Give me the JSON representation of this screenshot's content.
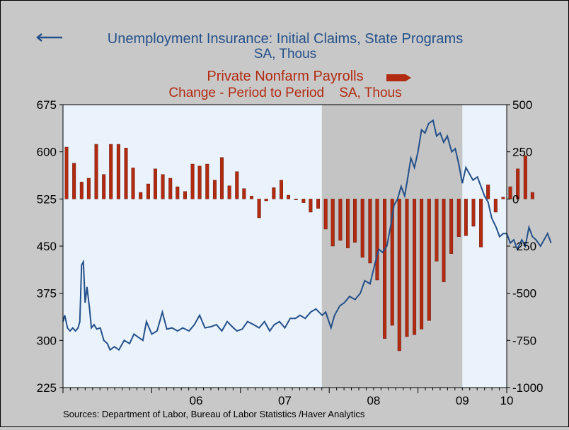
{
  "chart_data": {
    "type": "bar+line",
    "title_line1": "Unemployment Insurance: Initial Claims, State Programs",
    "title_line1_sub": "SA, Thous",
    "title_line2": "Private Nonfarm Payrolls",
    "title_line2_sub": "Change - Period to Period    SA, Thous",
    "source": "Sources:  Department of Labor, Bureau of Labor Statistics /Haver Analytics",
    "colors": {
      "claims": "#24508a",
      "payrolls": "#b22a10",
      "recession": "#c4c4c4",
      "plot_bg": "#eaf3fc"
    },
    "left_axis": {
      "min": 225,
      "max": 675,
      "ticks": [
        225,
        300,
        375,
        450,
        525,
        600,
        675
      ]
    },
    "right_axis": {
      "min": -1000,
      "max": 500,
      "ticks": [
        -1000,
        -750,
        -500,
        -250,
        0,
        250,
        500
      ]
    },
    "x_axis": {
      "min": 2005.0,
      "max": 2010.0,
      "labels": [
        {
          "label": "06",
          "x": 2006.5
        },
        {
          "label": "07",
          "x": 2007.5
        },
        {
          "label": "08",
          "x": 2008.5
        },
        {
          "label": "09",
          "x": 2009.5
        },
        {
          "label": "10",
          "x": 2010.0
        }
      ]
    },
    "recession": [
      2007.917,
      2009.5
    ],
    "payrolls": [
      {
        "x": 2005.04,
        "y": 275
      },
      {
        "x": 2005.125,
        "y": 190
      },
      {
        "x": 2005.21,
        "y": 90
      },
      {
        "x": 2005.29,
        "y": 110
      },
      {
        "x": 2005.375,
        "y": 290
      },
      {
        "x": 2005.46,
        "y": 130
      },
      {
        "x": 2005.54,
        "y": 290
      },
      {
        "x": 2005.625,
        "y": 290
      },
      {
        "x": 2005.71,
        "y": 270
      },
      {
        "x": 2005.79,
        "y": 165
      },
      {
        "x": 2005.875,
        "y": 35
      },
      {
        "x": 2005.96,
        "y": 80
      },
      {
        "x": 2006.04,
        "y": 160
      },
      {
        "x": 2006.125,
        "y": 130
      },
      {
        "x": 2006.21,
        "y": 110
      },
      {
        "x": 2006.29,
        "y": 65
      },
      {
        "x": 2006.375,
        "y": 40
      },
      {
        "x": 2006.46,
        "y": 185
      },
      {
        "x": 2006.54,
        "y": 175
      },
      {
        "x": 2006.625,
        "y": 185
      },
      {
        "x": 2006.71,
        "y": 100
      },
      {
        "x": 2006.79,
        "y": 220
      },
      {
        "x": 2006.875,
        "y": 70
      },
      {
        "x": 2006.96,
        "y": 145
      },
      {
        "x": 2007.04,
        "y": 55
      },
      {
        "x": 2007.125,
        "y": 15
      },
      {
        "x": 2007.21,
        "y": -100
      },
      {
        "x": 2007.29,
        "y": -10
      },
      {
        "x": 2007.375,
        "y": 60
      },
      {
        "x": 2007.46,
        "y": 100
      },
      {
        "x": 2007.54,
        "y": 20
      },
      {
        "x": 2007.625,
        "y": -5
      },
      {
        "x": 2007.71,
        "y": -20
      },
      {
        "x": 2007.79,
        "y": -70
      },
      {
        "x": 2007.875,
        "y": -50
      },
      {
        "x": 2007.96,
        "y": -160
      },
      {
        "x": 2008.04,
        "y": -250
      },
      {
        "x": 2008.125,
        "y": -220
      },
      {
        "x": 2008.21,
        "y": -260
      },
      {
        "x": 2008.29,
        "y": -230
      },
      {
        "x": 2008.375,
        "y": -310
      },
      {
        "x": 2008.46,
        "y": -340
      },
      {
        "x": 2008.54,
        "y": -430
      },
      {
        "x": 2008.625,
        "y": -740
      },
      {
        "x": 2008.71,
        "y": -670
      },
      {
        "x": 2008.79,
        "y": -805
      },
      {
        "x": 2008.875,
        "y": -730
      },
      {
        "x": 2008.96,
        "y": -720
      },
      {
        "x": 2009.04,
        "y": -690
      },
      {
        "x": 2009.125,
        "y": -645
      },
      {
        "x": 2009.21,
        "y": -330
      },
      {
        "x": 2009.29,
        "y": -440
      },
      {
        "x": 2009.375,
        "y": -290
      },
      {
        "x": 2009.46,
        "y": -200
      },
      {
        "x": 2009.54,
        "y": -195
      },
      {
        "x": 2009.625,
        "y": -145
      },
      {
        "x": 2009.71,
        "y": -255
      },
      {
        "x": 2009.79,
        "y": 75
      },
      {
        "x": 2009.875,
        "y": -70
      },
      {
        "x": 2009.96,
        "y": 10
      },
      {
        "x": 2010.04,
        "y": 65
      },
      {
        "x": 2010.125,
        "y": 160
      },
      {
        "x": 2010.21,
        "y": 230
      },
      {
        "x": 2010.29,
        "y": 35
      }
    ],
    "claims": [
      {
        "x": 2005.0,
        "y": 330
      },
      {
        "x": 2005.02,
        "y": 340
      },
      {
        "x": 2005.05,
        "y": 320
      },
      {
        "x": 2005.08,
        "y": 315
      },
      {
        "x": 2005.11,
        "y": 320
      },
      {
        "x": 2005.14,
        "y": 315
      },
      {
        "x": 2005.17,
        "y": 320
      },
      {
        "x": 2005.19,
        "y": 330
      },
      {
        "x": 2005.21,
        "y": 420
      },
      {
        "x": 2005.23,
        "y": 425
      },
      {
        "x": 2005.25,
        "y": 360
      },
      {
        "x": 2005.27,
        "y": 385
      },
      {
        "x": 2005.3,
        "y": 350
      },
      {
        "x": 2005.32,
        "y": 320
      },
      {
        "x": 2005.35,
        "y": 325
      },
      {
        "x": 2005.38,
        "y": 318
      },
      {
        "x": 2005.42,
        "y": 320
      },
      {
        "x": 2005.46,
        "y": 300
      },
      {
        "x": 2005.5,
        "y": 295
      },
      {
        "x": 2005.53,
        "y": 285
      },
      {
        "x": 2005.58,
        "y": 290
      },
      {
        "x": 2005.63,
        "y": 285
      },
      {
        "x": 2005.69,
        "y": 300
      },
      {
        "x": 2005.75,
        "y": 295
      },
      {
        "x": 2005.8,
        "y": 310
      },
      {
        "x": 2005.85,
        "y": 305
      },
      {
        "x": 2005.9,
        "y": 300
      },
      {
        "x": 2005.94,
        "y": 330
      },
      {
        "x": 2006.0,
        "y": 310
      },
      {
        "x": 2006.06,
        "y": 315
      },
      {
        "x": 2006.12,
        "y": 345
      },
      {
        "x": 2006.17,
        "y": 318
      },
      {
        "x": 2006.23,
        "y": 320
      },
      {
        "x": 2006.29,
        "y": 315
      },
      {
        "x": 2006.35,
        "y": 320
      },
      {
        "x": 2006.42,
        "y": 315
      },
      {
        "x": 2006.48,
        "y": 325
      },
      {
        "x": 2006.54,
        "y": 340
      },
      {
        "x": 2006.6,
        "y": 320
      },
      {
        "x": 2006.67,
        "y": 322
      },
      {
        "x": 2006.73,
        "y": 325
      },
      {
        "x": 2006.79,
        "y": 315
      },
      {
        "x": 2006.85,
        "y": 330
      },
      {
        "x": 2006.92,
        "y": 320
      },
      {
        "x": 2006.96,
        "y": 315
      },
      {
        "x": 2007.02,
        "y": 318
      },
      {
        "x": 2007.08,
        "y": 330
      },
      {
        "x": 2007.15,
        "y": 325
      },
      {
        "x": 2007.21,
        "y": 320
      },
      {
        "x": 2007.27,
        "y": 330
      },
      {
        "x": 2007.33,
        "y": 315
      },
      {
        "x": 2007.38,
        "y": 325
      },
      {
        "x": 2007.44,
        "y": 330
      },
      {
        "x": 2007.5,
        "y": 320
      },
      {
        "x": 2007.56,
        "y": 335
      },
      {
        "x": 2007.62,
        "y": 335
      },
      {
        "x": 2007.67,
        "y": 340
      },
      {
        "x": 2007.73,
        "y": 335
      },
      {
        "x": 2007.79,
        "y": 345
      },
      {
        "x": 2007.85,
        "y": 350
      },
      {
        "x": 2007.92,
        "y": 340
      },
      {
        "x": 2007.96,
        "y": 345
      },
      {
        "x": 2008.02,
        "y": 320
      },
      {
        "x": 2008.06,
        "y": 340
      },
      {
        "x": 2008.12,
        "y": 355
      },
      {
        "x": 2008.17,
        "y": 360
      },
      {
        "x": 2008.23,
        "y": 370
      },
      {
        "x": 2008.29,
        "y": 365
      },
      {
        "x": 2008.35,
        "y": 375
      },
      {
        "x": 2008.4,
        "y": 395
      },
      {
        "x": 2008.46,
        "y": 390
      },
      {
        "x": 2008.52,
        "y": 425
      },
      {
        "x": 2008.56,
        "y": 445
      },
      {
        "x": 2008.6,
        "y": 440
      },
      {
        "x": 2008.65,
        "y": 450
      },
      {
        "x": 2008.69,
        "y": 480
      },
      {
        "x": 2008.73,
        "y": 515
      },
      {
        "x": 2008.77,
        "y": 525
      },
      {
        "x": 2008.81,
        "y": 545
      },
      {
        "x": 2008.85,
        "y": 530
      },
      {
        "x": 2008.88,
        "y": 555
      },
      {
        "x": 2008.92,
        "y": 590
      },
      {
        "x": 2008.96,
        "y": 575
      },
      {
        "x": 2009.0,
        "y": 600
      },
      {
        "x": 2009.04,
        "y": 635
      },
      {
        "x": 2009.08,
        "y": 630
      },
      {
        "x": 2009.12,
        "y": 645
      },
      {
        "x": 2009.17,
        "y": 650
      },
      {
        "x": 2009.21,
        "y": 625
      },
      {
        "x": 2009.25,
        "y": 630
      },
      {
        "x": 2009.29,
        "y": 615
      },
      {
        "x": 2009.33,
        "y": 625
      },
      {
        "x": 2009.38,
        "y": 600
      },
      {
        "x": 2009.42,
        "y": 605
      },
      {
        "x": 2009.46,
        "y": 580
      },
      {
        "x": 2009.5,
        "y": 550
      },
      {
        "x": 2009.54,
        "y": 575
      },
      {
        "x": 2009.58,
        "y": 565
      },
      {
        "x": 2009.62,
        "y": 555
      },
      {
        "x": 2009.67,
        "y": 560
      },
      {
        "x": 2009.71,
        "y": 545
      },
      {
        "x": 2009.75,
        "y": 530
      },
      {
        "x": 2009.79,
        "y": 520
      },
      {
        "x": 2009.83,
        "y": 495
      },
      {
        "x": 2009.88,
        "y": 480
      },
      {
        "x": 2009.92,
        "y": 465
      },
      {
        "x": 2009.96,
        "y": 470
      },
      {
        "x": 2010.0,
        "y": 470
      },
      {
        "x": 2010.04,
        "y": 455
      },
      {
        "x": 2010.08,
        "y": 460
      },
      {
        "x": 2010.12,
        "y": 445
      },
      {
        "x": 2010.17,
        "y": 460
      },
      {
        "x": 2010.21,
        "y": 450
      },
      {
        "x": 2010.25,
        "y": 480
      },
      {
        "x": 2010.29,
        "y": 465
      },
      {
        "x": 2010.33,
        "y": 460
      },
      {
        "x": 2010.38,
        "y": 450
      },
      {
        "x": 2010.42,
        "y": 460
      },
      {
        "x": 2010.46,
        "y": 470
      },
      {
        "x": 2010.5,
        "y": 455
      }
    ]
  }
}
